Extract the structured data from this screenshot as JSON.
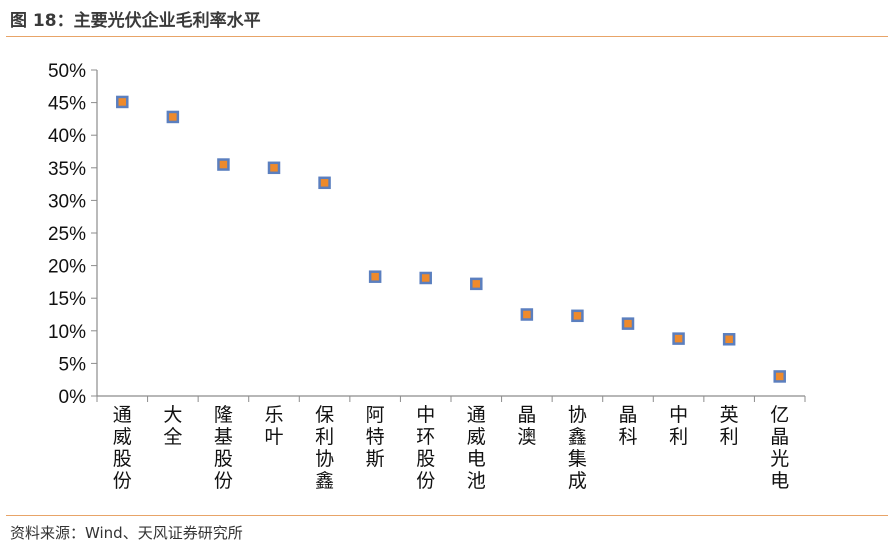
{
  "header": {
    "title": "图 18：主要光伏企业毛利率水平"
  },
  "footer": {
    "source": "资料来源：Wind、天风证券研究所"
  },
  "chart_data": {
    "type": "scatter",
    "title": "图 18：主要光伏企业毛利率水平",
    "categories": [
      "通威股份",
      "大全",
      "隆基股份",
      "乐叶",
      "保利协鑫",
      "阿特斯",
      "中环股份",
      "通威电池",
      "晶澳",
      "协鑫集成",
      "晶科",
      "中利",
      "英利",
      "亿晶光电"
    ],
    "values": [
      45.1,
      42.8,
      35.5,
      35.0,
      32.7,
      18.3,
      18.1,
      17.2,
      12.5,
      12.3,
      11.1,
      8.8,
      8.7,
      3.0
    ],
    "y_unit": "%",
    "ylim": [
      0,
      50
    ],
    "y_ticks": [
      "0%",
      "5%",
      "10%",
      "15%",
      "20%",
      "25%",
      "30%",
      "35%",
      "40%",
      "45%",
      "50%"
    ],
    "xlabel": "",
    "ylabel": "",
    "grid": false,
    "legend": "none",
    "marker": {
      "fill": "#ee8a2c",
      "edge": "#5b7fbf",
      "shape": "square"
    }
  }
}
